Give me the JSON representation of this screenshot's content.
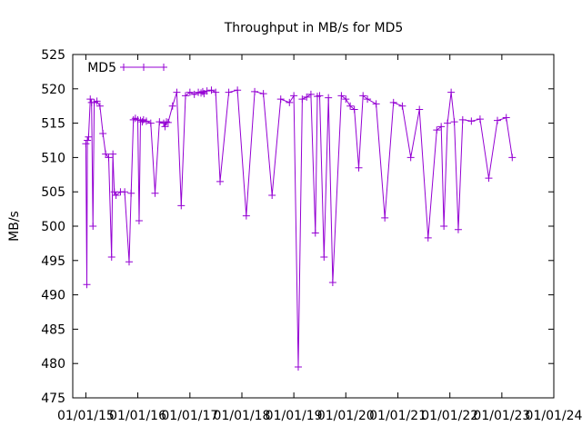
{
  "chart_data": {
    "type": "line",
    "title": "Throughput in MB/s for MD5",
    "xlabel": "",
    "ylabel": "MB/s",
    "ylim": [
      475,
      525
    ],
    "yticks": [
      475,
      480,
      485,
      490,
      495,
      500,
      505,
      510,
      515,
      520,
      525
    ],
    "xticks": [
      "01/01/15",
      "01/01/16",
      "01/01/17",
      "01/01/18",
      "01/01/19",
      "01/01/20",
      "01/01/21",
      "01/01/22",
      "01/01/23",
      "01/01/24"
    ],
    "xlim": [
      "2014-10-01",
      "2024-01-01"
    ],
    "grid": false,
    "legend": "top-left",
    "colors": {
      "series": "#9400D3",
      "axis": "#000000"
    },
    "series": [
      {
        "name": "MD5",
        "x": [
          "2015-01-01",
          "2015-01-08",
          "2015-01-12",
          "2015-01-20",
          "2015-02-01",
          "2015-02-10",
          "2015-02-20",
          "2015-03-01",
          "2015-03-20",
          "2015-04-10",
          "2015-05-01",
          "2015-05-20",
          "2015-06-10",
          "2015-07-01",
          "2015-07-10",
          "2015-07-20",
          "2015-08-01",
          "2015-09-01",
          "2015-10-01",
          "2015-11-01",
          "2015-11-15",
          "2015-12-01",
          "2015-12-15",
          "2016-01-01",
          "2016-01-10",
          "2016-01-20",
          "2016-02-01",
          "2016-02-10",
          "2016-03-01",
          "2016-04-01",
          "2016-05-01",
          "2016-06-01",
          "2016-07-01",
          "2016-07-10",
          "2016-07-20",
          "2016-08-01",
          "2016-09-01",
          "2016-10-01",
          "2016-11-01",
          "2016-12-01",
          "2017-01-01",
          "2017-02-01",
          "2017-03-01",
          "2017-03-20",
          "2017-04-01",
          "2017-04-10",
          "2017-05-01",
          "2017-06-01",
          "2017-07-01",
          "2017-08-01",
          "2017-10-01",
          "2017-12-01",
          "2018-02-01",
          "2018-04-01",
          "2018-06-01",
          "2018-08-01",
          "2018-10-01",
          "2018-12-01",
          "2019-01-01",
          "2019-02-01",
          "2019-03-01",
          "2019-04-01",
          "2019-05-01",
          "2019-06-01",
          "2019-06-15",
          "2019-07-01",
          "2019-08-01",
          "2019-09-01",
          "2019-10-01",
          "2019-12-01",
          "2020-01-01",
          "2020-02-01",
          "2020-03-01",
          "2020-04-01",
          "2020-05-01",
          "2020-06-01",
          "2020-08-01",
          "2020-10-01",
          "2020-12-01",
          "2021-02-01",
          "2021-04-01",
          "2021-06-01",
          "2021-08-01",
          "2021-10-01",
          "2021-11-01",
          "2021-11-20",
          "2021-12-15",
          "2022-01-10",
          "2022-02-01",
          "2022-03-01",
          "2022-04-01",
          "2022-06-01",
          "2022-08-01",
          "2022-10-01",
          "2022-12-01",
          "2023-02-01",
          "2023-03-15"
        ],
        "values": [
          512.0,
          491.5,
          512.5,
          513.0,
          518.5,
          518.0,
          500.0,
          518.0,
          518.2,
          517.5,
          513.5,
          510.5,
          510.0,
          495.5,
          510.5,
          505.0,
          504.5,
          505.0,
          505.0,
          494.8,
          504.8,
          515.5,
          515.7,
          515.5,
          500.8,
          515.4,
          515.2,
          515.5,
          515.3,
          515.0,
          504.8,
          515.2,
          515.0,
          514.5,
          515.2,
          515.1,
          517.5,
          519.5,
          503.0,
          519.0,
          519.5,
          519.2,
          519.5,
          519.4,
          519.6,
          519.3,
          519.7,
          519.8,
          519.5,
          506.5,
          519.5,
          519.8,
          501.5,
          519.6,
          519.3,
          504.5,
          518.5,
          518.0,
          519.0,
          479.5,
          518.5,
          518.8,
          519.2,
          499.0,
          518.9,
          519.0,
          495.5,
          518.7,
          491.8,
          519.0,
          518.5,
          517.5,
          517.0,
          508.5,
          519.0,
          518.5,
          517.8,
          501.2,
          518.0,
          517.5,
          510.0,
          517.0,
          498.3,
          514.0,
          514.5,
          500.0,
          515.0,
          519.5,
          515.2,
          499.5,
          515.5,
          515.3,
          515.6,
          507.0,
          515.4,
          515.8,
          510.0
        ]
      }
    ]
  }
}
